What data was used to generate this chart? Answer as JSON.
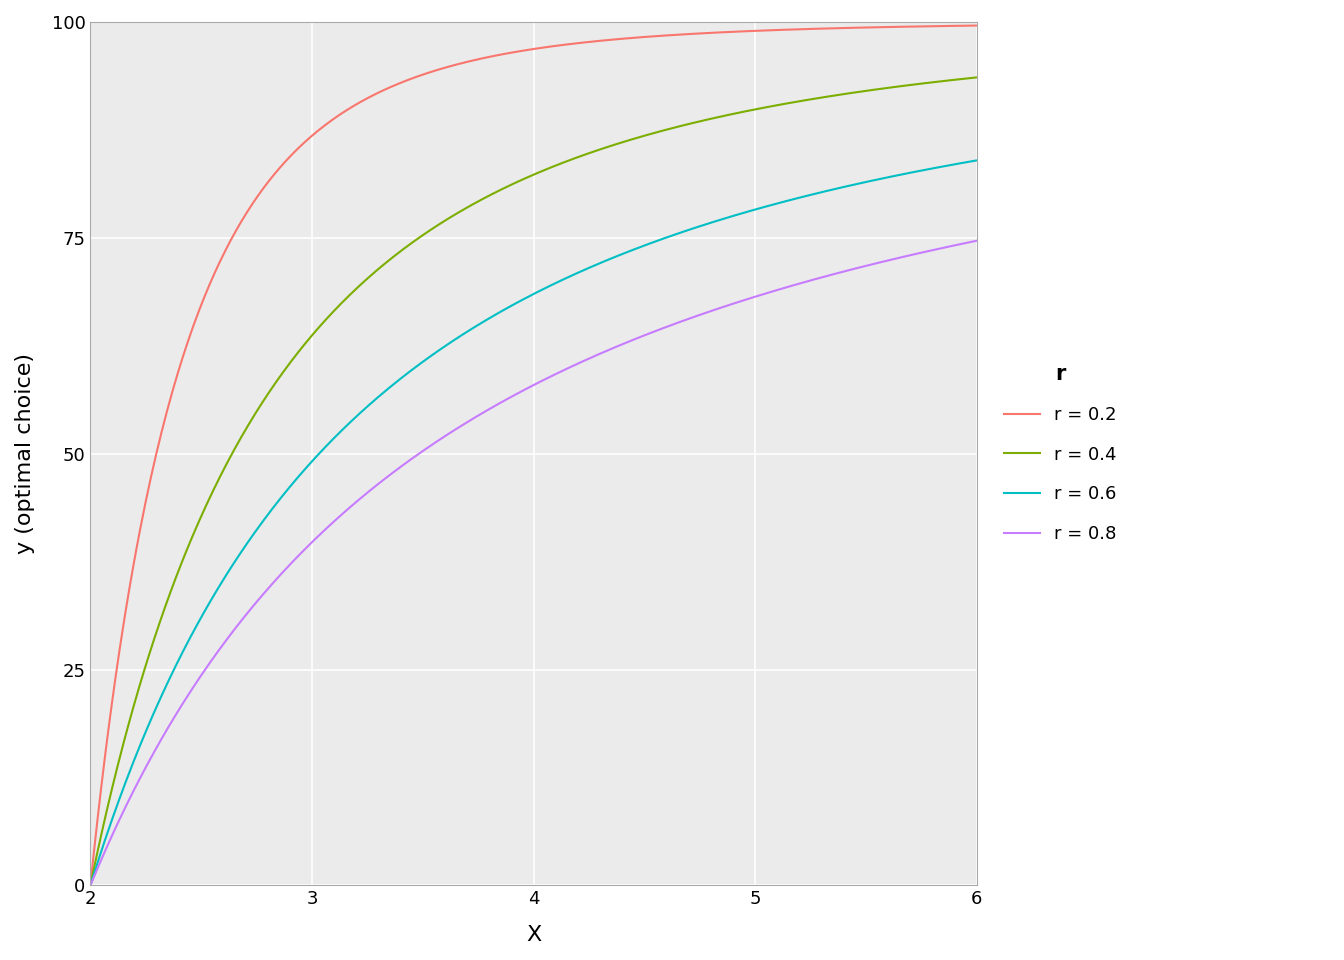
{
  "r_values": [
    0.2,
    0.4,
    0.6,
    0.8
  ],
  "colors": [
    "#F8766D",
    "#7CAE00",
    "#00BFC4",
    "#C77CFF"
  ],
  "labels": [
    "r = 0.2",
    "r = 0.4",
    "r = 0.6",
    "r = 0.8"
  ],
  "x_min": 2.0,
  "x_max": 6.0,
  "y_min": 0,
  "y_max": 100,
  "xlabel": "X",
  "ylabel": "y (optimal choice)",
  "legend_title": "r",
  "background_color": "#EBEBEB",
  "grid_color": "white",
  "line_width": 1.5,
  "n_points": 500
}
